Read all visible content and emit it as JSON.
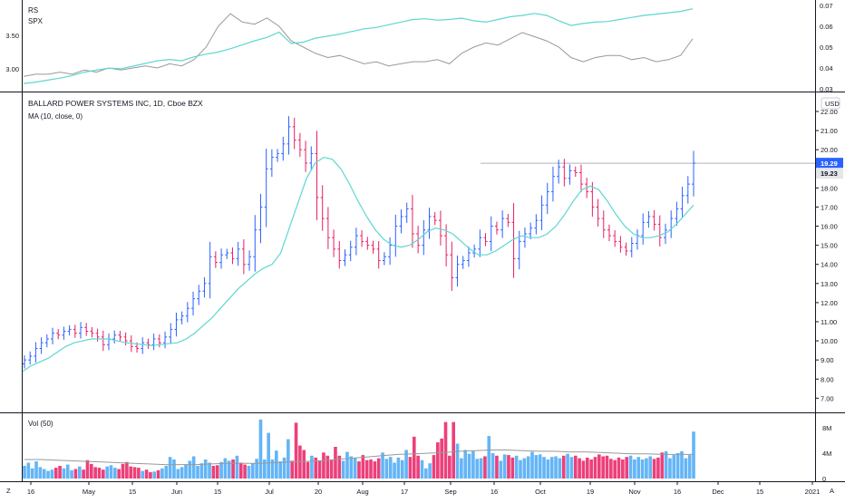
{
  "header": {
    "title": "BALLARD POWER SYSTEMS INC, 1D, Cboe BZX",
    "ma_label": "MA (10, close, 0)",
    "currency": "USD"
  },
  "rs_pane": {
    "label1": "RS",
    "label2": "SPX"
  },
  "vol_pane": {
    "label": "Vol (50)"
  },
  "bottom_bar": {
    "left_glyph": "Z",
    "right_glyph": "A"
  },
  "colors": {
    "up": "#2962ff",
    "down": "#e91e63",
    "ma": "#5ed6d0",
    "vol_up": "#64b5f6",
    "vol_down": "#ec407a",
    "vol_avg": "#999999",
    "rs_line": "#5ed6d0",
    "spx_line": "#999999",
    "price_badge": "#2962ff",
    "level_line": "#b0b3b8"
  },
  "chart_data": [
    {
      "type": "line",
      "name_hint": "rs pane",
      "series": [
        {
          "name": "RS",
          "values": [
            2.78,
            2.8,
            2.83,
            2.86,
            2.9,
            2.95,
            2.98,
            3.01,
            3.0,
            3.04,
            3.08,
            3.12,
            3.14,
            3.12,
            3.18,
            3.22,
            3.25,
            3.3,
            3.36,
            3.42,
            3.47,
            3.55,
            3.38,
            3.4,
            3.46,
            3.49,
            3.52,
            3.56,
            3.6,
            3.62,
            3.66,
            3.7,
            3.74,
            3.75,
            3.73,
            3.74,
            3.76,
            3.72,
            3.7,
            3.74,
            3.78,
            3.8,
            3.83,
            3.8,
            3.72,
            3.65,
            3.68,
            3.7,
            3.71,
            3.74,
            3.77,
            3.8,
            3.82,
            3.84,
            3.86,
            3.9
          ]
        },
        {
          "name": "SPX",
          "values": [
            0.036,
            0.037,
            0.037,
            0.038,
            0.037,
            0.039,
            0.038,
            0.04,
            0.039,
            0.04,
            0.041,
            0.04,
            0.042,
            0.041,
            0.044,
            0.05,
            0.06,
            0.066,
            0.062,
            0.061,
            0.064,
            0.06,
            0.053,
            0.05,
            0.047,
            0.045,
            0.046,
            0.044,
            0.042,
            0.043,
            0.041,
            0.042,
            0.043,
            0.043,
            0.044,
            0.042,
            0.047,
            0.05,
            0.052,
            0.051,
            0.054,
            0.057,
            0.055,
            0.053,
            0.05,
            0.045,
            0.043,
            0.045,
            0.046,
            0.046,
            0.044,
            0.045,
            0.043,
            0.044,
            0.046,
            0.054
          ]
        }
      ],
      "y_left": {
        "ticks": [
          "3.50",
          "3.00"
        ],
        "range": [
          2.7,
          3.95
        ]
      },
      "y_right": {
        "ticks": [
          "0.07",
          "0.06",
          "0.05",
          "0.04",
          "0.03"
        ],
        "range": [
          0.03,
          0.07
        ]
      }
    },
    {
      "type": "ohlc",
      "name_hint": "price pane",
      "x_ticks": [
        "16",
        "May",
        "15",
        "Jun",
        "15",
        "Jul",
        "20",
        "Aug",
        "17",
        "Sep",
        "16",
        "Oct",
        "19",
        "Nov",
        "16",
        "Dec",
        "15",
        "2021"
      ],
      "y_ticks": [
        "22.00",
        "21.00",
        "20.00",
        "19.00",
        "18.00",
        "17.00",
        "16.00",
        "15.00",
        "14.00",
        "13.00",
        "12.00",
        "11.00",
        "10.00",
        "9.00",
        "8.00",
        "7.00"
      ],
      "ylim": [
        6.4,
        22.9
      ],
      "closes": [
        9.0,
        9.2,
        9.6,
        9.9,
        10.1,
        10.4,
        10.3,
        10.5,
        10.6,
        10.4,
        10.7,
        10.5,
        10.4,
        10.2,
        9.8,
        10.1,
        10.3,
        10.2,
        10.0,
        9.7,
        9.6,
        9.9,
        9.8,
        10.1,
        9.9,
        10.2,
        10.6,
        11.1,
        11.3,
        11.7,
        12.2,
        12.6,
        13.0,
        14.4,
        14.1,
        14.5,
        14.6,
        14.3,
        14.8,
        14.0,
        14.4,
        15.8,
        17.0,
        19.0,
        19.6,
        19.8,
        20.3,
        21.2,
        20.5,
        20.0,
        19.3,
        19.8,
        17.5,
        16.4,
        15.4,
        14.8,
        14.2,
        14.5,
        14.9,
        15.5,
        15.2,
        15.0,
        14.8,
        14.2,
        14.4,
        15.0,
        16.0,
        16.5,
        16.9,
        15.6,
        15.0,
        15.8,
        16.5,
        16.3,
        15.5,
        14.5,
        13.3,
        14.0,
        14.2,
        14.6,
        14.8,
        15.4,
        15.2,
        16.0,
        15.8,
        16.4,
        16.2,
        14.3,
        15.2,
        15.6,
        15.9,
        16.3,
        17.1,
        17.8,
        18.6,
        19.1,
        18.5,
        18.9,
        18.8,
        18.2,
        17.8,
        17.0,
        16.4,
        15.8,
        15.5,
        15.2,
        14.9,
        14.7,
        15.1,
        15.5,
        16.2,
        16.5,
        16.1,
        15.4,
        15.8,
        16.4,
        16.9,
        17.6,
        18.2,
        19.3
      ],
      "ma": [
        8.4,
        8.7,
        8.9,
        9.1,
        9.4,
        9.7,
        9.9,
        10.0,
        10.1,
        10.1,
        10.1,
        10.0,
        9.9,
        9.85,
        9.8,
        9.75,
        9.8,
        9.85,
        9.9,
        10.1,
        10.4,
        10.8,
        11.2,
        11.7,
        12.2,
        12.7,
        13.1,
        13.5,
        13.8,
        14.0,
        14.6,
        15.9,
        17.2,
        18.5,
        19.3,
        19.6,
        19.5,
        19.0,
        18.2,
        17.3,
        16.5,
        15.8,
        15.3,
        15.0,
        14.9,
        15.0,
        15.3,
        15.7,
        15.9,
        15.8,
        15.6,
        15.2,
        14.8,
        14.5,
        14.5,
        14.7,
        15.0,
        15.3,
        15.5,
        15.4,
        15.4,
        15.6,
        16.0,
        16.6,
        17.3,
        17.9,
        18.1,
        17.9,
        17.3,
        16.6,
        16.0,
        15.6,
        15.4,
        15.4,
        15.5,
        15.7,
        16.1,
        16.6,
        17.1
      ],
      "level_line": 19.29,
      "price_badges": [
        "19.29",
        "19.23"
      ]
    },
    {
      "type": "bar",
      "name_hint": "volume pane",
      "y_ticks": [
        "8M",
        "4M",
        "0"
      ],
      "ylim": [
        0,
        10
      ],
      "values": [
        2.0,
        2.5,
        1.6,
        2.7,
        1.8,
        1.5,
        1.2,
        1.4,
        1.7,
        2.0,
        1.6,
        2.2,
        1.3,
        1.5,
        1.9,
        1.4,
        2.9,
        2.3,
        1.8,
        1.7,
        1.4,
        1.9,
        2.1,
        1.7,
        1.5,
        2.3,
        2.6,
        1.9,
        1.8,
        1.7,
        1.2,
        1.4,
        1.0,
        1.1,
        1.3,
        1.6,
        2.0,
        3.4,
        3.0,
        1.5,
        1.8,
        2.2,
        2.8,
        3.5,
        2.0,
        2.4,
        3.0,
        2.5,
        2.0,
        2.1,
        2.6,
        3.2,
        2.8,
        3.0,
        3.6,
        2.5,
        2.2,
        2.0,
        2.4,
        3.1,
        9.3,
        3.0,
        7.2,
        3.0,
        4.4,
        2.7,
        3.3,
        6.2,
        2.8,
        8.8,
        5.2,
        4.5,
        2.6,
        3.6,
        3.3,
        2.8,
        4.1,
        3.6,
        2.9,
        5.0,
        3.6,
        2.8,
        4.2,
        3.5,
        3.2,
        2.7,
        3.7,
        2.9,
        3.0,
        2.7,
        3.2,
        4.1,
        3.1,
        3.4,
        2.5,
        3.3,
        2.9,
        4.5,
        3.4,
        6.6,
        3.6,
        2.9,
        1.6,
        2.4,
        3.7,
        5.7,
        6.3,
        8.9,
        3.6,
        8.9,
        5.5,
        3.2,
        4.5,
        3.9,
        4.3,
        3.1,
        3.2,
        3.5,
        6.7,
        4.0,
        3.6,
        2.8,
        3.8,
        3.7,
        3.3,
        3.6,
        2.9,
        3.2,
        3.5,
        4.2,
        3.7,
        3.8,
        3.4,
        3.0,
        3.4,
        3.5,
        3.2,
        3.6,
        3.9,
        3.4,
        3.6,
        3.2,
        2.8,
        3.3,
        3.0,
        3.4,
        3.8,
        3.5,
        3.6,
        3.1,
        2.9,
        3.3,
        3.0,
        3.4,
        3.6,
        3.0,
        3.4,
        3.0,
        3.2,
        3.5,
        3.1,
        3.3,
        4.1,
        4.3,
        3.2,
        3.7,
        4.0,
        4.3,
        3.2,
        3.7,
        7.4
      ],
      "avg": [
        3.0,
        3.0,
        2.9,
        2.8,
        2.7,
        2.6,
        2.5,
        2.4,
        2.3,
        2.2,
        2.2,
        2.2,
        2.3,
        2.4,
        2.4,
        2.4,
        2.5,
        2.6,
        2.7,
        2.8,
        3.0,
        3.2,
        3.4,
        3.6,
        3.8,
        3.9,
        4.0,
        4.1,
        4.3,
        4.4,
        4.5,
        4.5,
        4.4,
        4.3,
        4.3,
        4.2,
        4.2,
        4.1,
        4.0,
        3.9,
        3.9,
        3.8,
        3.8,
        3.8
      ]
    }
  ]
}
